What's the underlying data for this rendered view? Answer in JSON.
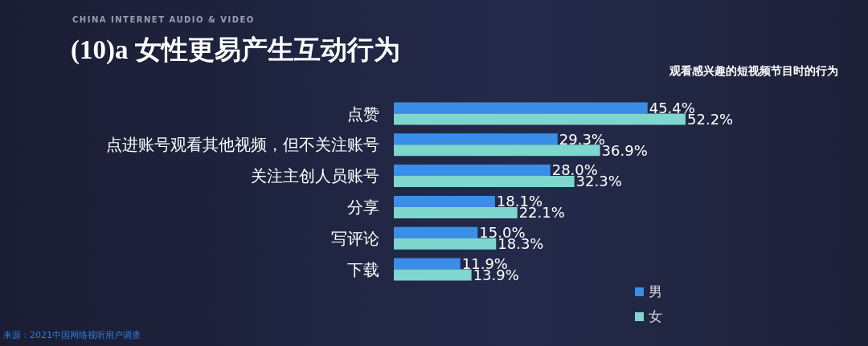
{
  "chart_data": {
    "type": "bar",
    "orientation": "horizontal",
    "title": "(10)a 女性更易产生互动行为",
    "subtitle": "观看感兴趣的短视频节目时的行为",
    "annotations": [
      "CHINA INTERNET AUDIO & VIDEO",
      "来源：2021中国网络视听用户调查"
    ],
    "categories": [
      "点赞",
      "点进账号观看其他视频，但不关注账号",
      "关注主创人员账号",
      "分享",
      "写评论",
      "下载"
    ],
    "series": [
      {
        "name": "男",
        "color": "#3a8ee8",
        "values": [
          45.4,
          29.3,
          28.0,
          18.1,
          15.0,
          11.9
        ],
        "value_labels": [
          "45.4%",
          "29.3%",
          "28.0%",
          "18.1%",
          "15.0%",
          "11.9%"
        ]
      },
      {
        "name": "女",
        "color": "#7fd6cf",
        "values": [
          52.2,
          36.9,
          32.3,
          22.1,
          18.3,
          13.9
        ],
        "value_labels": [
          "52.2%",
          "36.9%",
          "32.3%",
          "22.1%",
          "18.3%",
          "13.9%"
        ]
      }
    ],
    "legend": "bottom right",
    "grid": false
  }
}
